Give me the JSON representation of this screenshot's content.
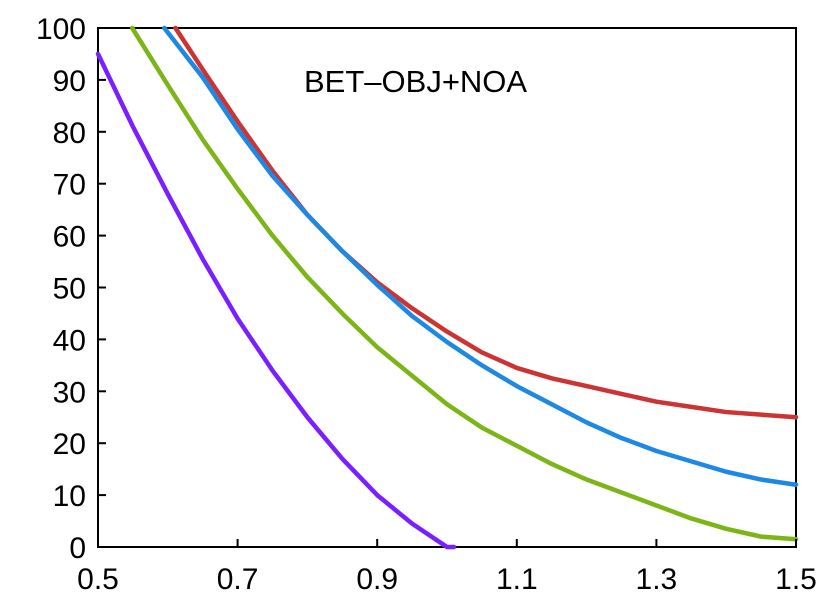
{
  "chart_data": {
    "type": "line",
    "annotation": "BET–OBJ+NOA",
    "xlim": [
      0.5,
      1.5
    ],
    "ylim": [
      0,
      100
    ],
    "x_ticks": [
      "0.5",
      "0.7",
      "0.9",
      "1.1",
      "1.3",
      "1.5"
    ],
    "y_ticks": [
      "0",
      "10",
      "20",
      "30",
      "40",
      "50",
      "60",
      "70",
      "80",
      "90",
      "100"
    ],
    "grid": false,
    "series": [
      {
        "color": "#cc3333",
        "points": [
          [
            0.611,
            100
          ],
          [
            0.65,
            92
          ],
          [
            0.7,
            82
          ],
          [
            0.75,
            72.5
          ],
          [
            0.8,
            64
          ],
          [
            0.85,
            57
          ],
          [
            0.9,
            51
          ],
          [
            0.95,
            46
          ],
          [
            1.0,
            41.5
          ],
          [
            1.05,
            37.5
          ],
          [
            1.1,
            34.5
          ],
          [
            1.15,
            32.5
          ],
          [
            1.2,
            31
          ],
          [
            1.25,
            29.5
          ],
          [
            1.3,
            28
          ],
          [
            1.35,
            27
          ],
          [
            1.4,
            26
          ],
          [
            1.45,
            25.5
          ],
          [
            1.5,
            25
          ]
        ]
      },
      {
        "color": "#1e88e5",
        "points": [
          [
            0.595,
            100
          ],
          [
            0.65,
            90.5
          ],
          [
            0.7,
            80.5
          ],
          [
            0.75,
            71.5
          ],
          [
            0.8,
            64
          ],
          [
            0.85,
            57
          ],
          [
            0.9,
            50.5
          ],
          [
            0.95,
            44.5
          ],
          [
            1.0,
            39.5
          ],
          [
            1.05,
            35
          ],
          [
            1.1,
            31
          ],
          [
            1.15,
            27.5
          ],
          [
            1.2,
            24
          ],
          [
            1.25,
            21
          ],
          [
            1.3,
            18.5
          ],
          [
            1.35,
            16.5
          ],
          [
            1.4,
            14.5
          ],
          [
            1.45,
            13
          ],
          [
            1.5,
            12
          ]
        ]
      },
      {
        "color": "#7cb518",
        "points": [
          [
            0.549,
            100
          ],
          [
            0.6,
            89
          ],
          [
            0.65,
            78.5
          ],
          [
            0.7,
            69
          ],
          [
            0.75,
            60
          ],
          [
            0.8,
            52
          ],
          [
            0.85,
            45
          ],
          [
            0.9,
            38.5
          ],
          [
            0.95,
            33
          ],
          [
            1.0,
            27.5
          ],
          [
            1.05,
            23
          ],
          [
            1.1,
            19.5
          ],
          [
            1.15,
            16
          ],
          [
            1.2,
            13
          ],
          [
            1.25,
            10.5
          ],
          [
            1.3,
            8
          ],
          [
            1.35,
            5.5
          ],
          [
            1.4,
            3.5
          ],
          [
            1.45,
            2
          ],
          [
            1.5,
            1.5
          ]
        ]
      },
      {
        "color": "#7a1fff",
        "points": [
          [
            0.5,
            95
          ],
          [
            0.55,
            81
          ],
          [
            0.6,
            68
          ],
          [
            0.65,
            55.5
          ],
          [
            0.7,
            44
          ],
          [
            0.75,
            34
          ],
          [
            0.8,
            25
          ],
          [
            0.85,
            17
          ],
          [
            0.9,
            10
          ],
          [
            0.95,
            4.5
          ],
          [
            1.0,
            0
          ],
          [
            1.01,
            0
          ]
        ]
      }
    ]
  }
}
